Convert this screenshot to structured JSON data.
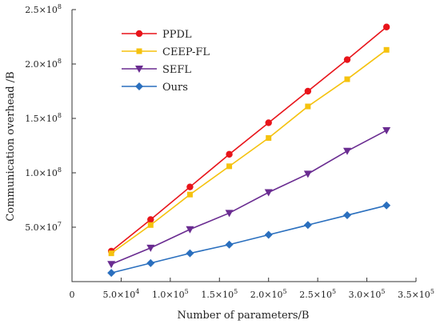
{
  "chart_data": {
    "type": "line",
    "xlabel": "Number of parameters/B",
    "ylabel": "Communication overhead /B",
    "xlim": [
      0,
      350000
    ],
    "ylim": [
      0,
      250000000
    ],
    "x_ticks": [
      {
        "value": 0,
        "label": "0",
        "exp": ""
      },
      {
        "value": 50000,
        "label": "5.0×10",
        "exp": "4"
      },
      {
        "value": 100000,
        "label": "1.0×10",
        "exp": "5"
      },
      {
        "value": 150000,
        "label": "1.5×10",
        "exp": "5"
      },
      {
        "value": 200000,
        "label": "2.0×10",
        "exp": "5"
      },
      {
        "value": 250000,
        "label": "2.5×10",
        "exp": "5"
      },
      {
        "value": 300000,
        "label": "3.0×10",
        "exp": "5"
      },
      {
        "value": 350000,
        "label": "3.5×10",
        "exp": "5"
      }
    ],
    "y_ticks": [
      {
        "value": 50000000,
        "label": "5.0×10",
        "exp": "7"
      },
      {
        "value": 100000000,
        "label": "1.0×10",
        "exp": "8"
      },
      {
        "value": 150000000,
        "label": "1.5×10",
        "exp": "8"
      },
      {
        "value": 200000000,
        "label": "2.0×10",
        "exp": "8"
      },
      {
        "value": 250000000,
        "label": "2.5×10",
        "exp": "8"
      }
    ],
    "x": [
      40000,
      80000,
      120000,
      160000,
      200000,
      240000,
      280000,
      320000
    ],
    "legend_position": "top-left",
    "grid": false,
    "series": [
      {
        "name": "PPDL",
        "color": "#e8141a",
        "marker": "circle",
        "values": [
          28000000,
          57000000,
          87000000,
          117000000,
          146000000,
          175000000,
          204000000,
          234000000
        ]
      },
      {
        "name": "CEEP-FL",
        "color": "#f5c20e",
        "marker": "square",
        "values": [
          26000000,
          52000000,
          80000000,
          106000000,
          132000000,
          161000000,
          186000000,
          213000000
        ]
      },
      {
        "name": "SEFL",
        "color": "#6a2c91",
        "marker": "triangle-down",
        "values": [
          16000000,
          31000000,
          48000000,
          63000000,
          82000000,
          99000000,
          120000000,
          139000000
        ]
      },
      {
        "name": "Ours",
        "color": "#2a6fbe",
        "marker": "diamond",
        "values": [
          8000000,
          17000000,
          26000000,
          34000000,
          43000000,
          52000000,
          61000000,
          70000000
        ]
      }
    ]
  }
}
